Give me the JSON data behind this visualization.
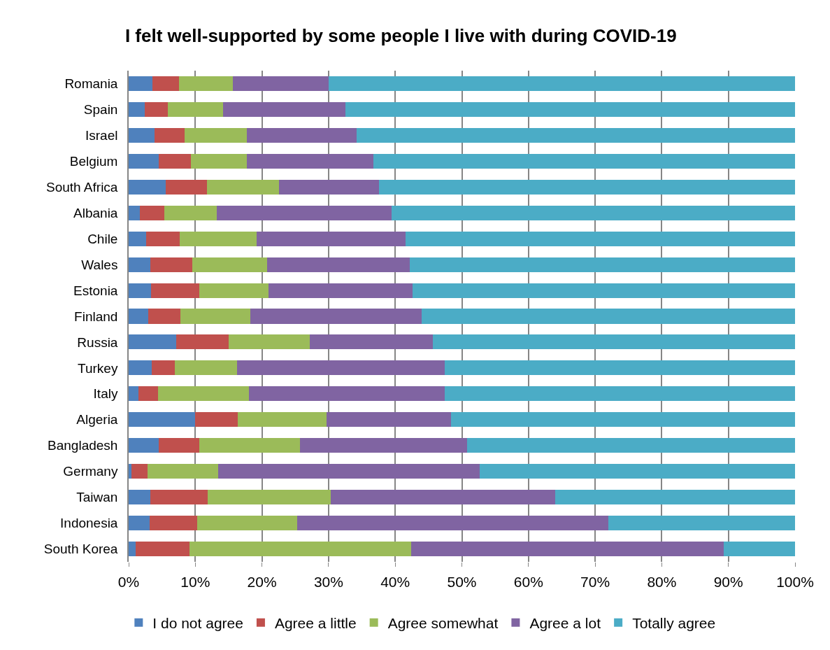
{
  "chart_data": {
    "type": "bar",
    "orientation": "horizontal",
    "stacked": true,
    "title": "I felt well-supported by some people I live with during COVID-19",
    "categories": [
      "Romania",
      "Spain",
      "Israel",
      "Belgium",
      "South Africa",
      "Albania",
      "Chile",
      "Wales",
      "Estonia",
      "Finland",
      "Russia",
      "Turkey",
      "Italy",
      "Algeria",
      "Bangladesh",
      "Germany",
      "Taiwan",
      "Indonesia",
      "South Korea"
    ],
    "series": [
      {
        "name": "I do not agree",
        "color": "#4f81bd",
        "values": [
          3.6,
          2.4,
          3.9,
          4.5,
          5.6,
          1.7,
          2.6,
          3.3,
          3.4,
          2.9,
          7.1,
          3.5,
          1.5,
          10.0,
          4.5,
          0.4,
          3.2,
          3.1,
          1.0
        ]
      },
      {
        "name": "Agree a little",
        "color": "#c0504d",
        "values": [
          4.0,
          3.5,
          4.5,
          4.8,
          6.2,
          3.6,
          5.1,
          6.3,
          7.2,
          4.9,
          7.9,
          3.4,
          2.9,
          6.4,
          6.1,
          2.4,
          8.7,
          7.2,
          8.1
        ]
      },
      {
        "name": "Agree somewhat",
        "color": "#9bbb59",
        "values": [
          8.0,
          8.3,
          9.3,
          8.4,
          10.8,
          7.9,
          11.5,
          11.2,
          10.4,
          10.5,
          12.2,
          9.4,
          13.7,
          13.3,
          15.1,
          10.6,
          18.4,
          15.0,
          33.3
        ]
      },
      {
        "name": "Agree a lot",
        "color": "#8064a2",
        "values": [
          14.4,
          18.3,
          16.5,
          19.0,
          15.0,
          26.3,
          22.4,
          21.4,
          21.6,
          25.7,
          18.4,
          31.1,
          29.3,
          18.7,
          25.1,
          39.3,
          33.7,
          46.7,
          46.9
        ]
      },
      {
        "name": "Totally agree",
        "color": "#4bacc6",
        "values": [
          70.0,
          67.5,
          65.8,
          63.3,
          62.4,
          60.5,
          58.4,
          57.8,
          57.4,
          56.0,
          54.4,
          52.6,
          52.6,
          51.6,
          49.2,
          47.3,
          36.0,
          28.0,
          10.7
        ]
      }
    ],
    "xlim": [
      0,
      100
    ],
    "xticks": [
      {
        "value": 0,
        "label": "0%"
      },
      {
        "value": 10,
        "label": "10%"
      },
      {
        "value": 20,
        "label": "20%"
      },
      {
        "value": 30,
        "label": "30%"
      },
      {
        "value": 40,
        "label": "40%"
      },
      {
        "value": 50,
        "label": "50%"
      },
      {
        "value": 60,
        "label": "60%"
      },
      {
        "value": 70,
        "label": "70%"
      },
      {
        "value": 80,
        "label": "80%"
      },
      {
        "value": 90,
        "label": "90%"
      },
      {
        "value": 100,
        "label": "100%"
      }
    ],
    "grid": "x",
    "legend": "bottom"
  }
}
